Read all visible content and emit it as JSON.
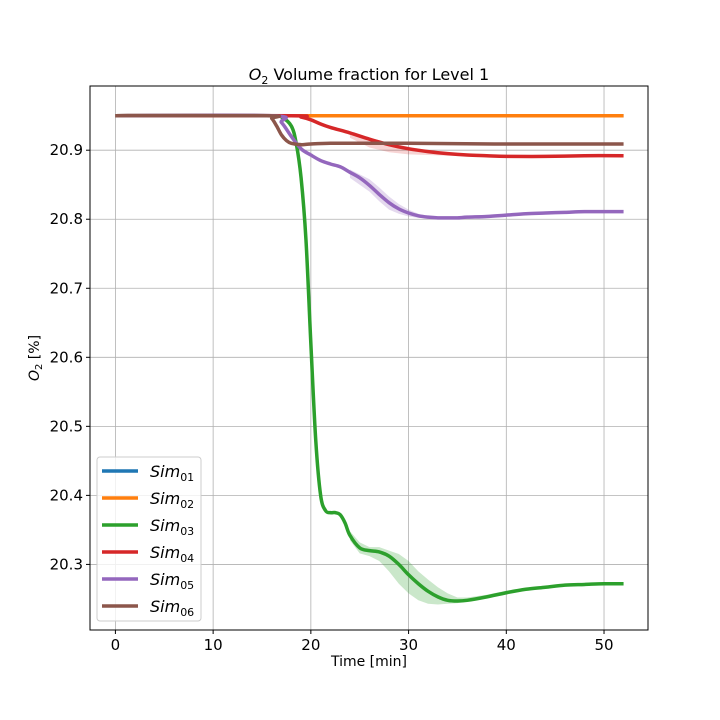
{
  "chart_data": {
    "type": "line",
    "title_main": "O",
    "title_sub": "2",
    "title_rest": " Volume fraction for Level 1",
    "xlabel": "Time [min]",
    "ylabel_main": "O",
    "ylabel_sub": "2",
    "ylabel_rest": " [%]",
    "xlim": [
      -2.6,
      54.5
    ],
    "ylim": [
      20.205,
      20.993
    ],
    "xticks": [
      0,
      10,
      20,
      30,
      40,
      50
    ],
    "yticks": [
      20.3,
      20.4,
      20.5,
      20.6,
      20.7,
      20.8,
      20.9
    ],
    "ytick_labels": [
      "20.3",
      "20.4",
      "20.5",
      "20.6",
      "20.7",
      "20.8",
      "20.9"
    ],
    "grid": true,
    "legend_position": "lower-left",
    "series": [
      {
        "name_main": "Sim",
        "name_sub": "01",
        "color": "#1f77b4",
        "x": [
          0,
          52
        ],
        "y": [
          20.95,
          20.95
        ]
      },
      {
        "name_main": "Sim",
        "name_sub": "02",
        "color": "#ff7f0e",
        "x": [
          0,
          52
        ],
        "y": [
          20.95,
          20.95
        ]
      },
      {
        "name_main": "Sim",
        "name_sub": "03",
        "color": "#2ca02c",
        "x": [
          0,
          16,
          17,
          18,
          18.5,
          19,
          19.5,
          20,
          20.5,
          21,
          21.5,
          22,
          22.5,
          23,
          23.5,
          24,
          25,
          26,
          27,
          28,
          29,
          30,
          31,
          32,
          33,
          34,
          35,
          36,
          38,
          40,
          42,
          44,
          46,
          48,
          50,
          52
        ],
        "y": [
          20.95,
          20.95,
          20.948,
          20.935,
          20.91,
          20.86,
          20.77,
          20.62,
          20.48,
          20.4,
          20.378,
          20.375,
          20.375,
          20.372,
          20.36,
          20.342,
          20.324,
          20.32,
          20.318,
          20.312,
          20.3,
          20.285,
          20.272,
          20.261,
          20.253,
          20.248,
          20.247,
          20.248,
          20.253,
          20.259,
          20.264,
          20.267,
          20.27,
          20.271,
          20.272,
          20.272
        ]
      },
      {
        "name_main": "Sim",
        "name_sub": "04",
        "color": "#d62728",
        "x": [
          0,
          18,
          19,
          20,
          21,
          22,
          24,
          26,
          28,
          30,
          32,
          34,
          36,
          38,
          40,
          44,
          48,
          52
        ],
        "y": [
          20.95,
          20.95,
          20.948,
          20.944,
          20.938,
          20.933,
          20.925,
          20.916,
          20.908,
          20.902,
          20.898,
          20.895,
          20.893,
          20.892,
          20.891,
          20.891,
          20.892,
          20.892
        ]
      },
      {
        "name_main": "Sim",
        "name_sub": "05",
        "color": "#9467bd",
        "x": [
          0,
          16,
          17,
          18,
          19,
          20,
          21,
          22,
          23,
          24,
          25,
          26,
          27,
          28,
          29,
          30,
          31,
          32,
          33,
          34,
          35,
          36,
          38,
          40,
          42,
          44,
          46,
          48,
          50,
          52
        ],
        "y": [
          20.95,
          20.95,
          20.94,
          20.92,
          20.902,
          20.893,
          20.885,
          20.88,
          20.876,
          20.868,
          20.86,
          20.849,
          20.836,
          20.824,
          20.815,
          20.809,
          20.805,
          20.803,
          20.802,
          20.802,
          20.802,
          20.803,
          20.804,
          20.806,
          20.808,
          20.809,
          20.81,
          20.811,
          20.811,
          20.811
        ]
      },
      {
        "name_main": "Sim",
        "name_sub": "06",
        "color": "#8c564b",
        "x": [
          0,
          15.5,
          16,
          16.5,
          17,
          17.5,
          18,
          19,
          20,
          22,
          25,
          30,
          40,
          52
        ],
        "y": [
          20.95,
          20.95,
          20.946,
          20.935,
          20.922,
          20.914,
          20.91,
          20.908,
          20.909,
          20.91,
          20.91,
          20.91,
          20.909,
          20.909
        ]
      }
    ],
    "bands": [
      {
        "series_index": 2,
        "color": "#2ca02c",
        "opacity": 0.25,
        "x": [
          24,
          25,
          26,
          27,
          28,
          29,
          30,
          31,
          32,
          33,
          34,
          35,
          36,
          38,
          40,
          42,
          44
        ],
        "lo": [
          20.335,
          20.316,
          20.312,
          20.305,
          20.29,
          20.272,
          20.258,
          20.248,
          20.243,
          20.242,
          20.243,
          20.244,
          20.246,
          20.252,
          20.258,
          20.262,
          20.265
        ],
        "hi": [
          20.348,
          20.332,
          20.325,
          20.325,
          20.32,
          20.315,
          20.305,
          20.29,
          20.278,
          20.267,
          20.258,
          20.252,
          20.252,
          20.256,
          20.262,
          20.266,
          20.268
        ]
      },
      {
        "series_index": 4,
        "color": "#9467bd",
        "opacity": 0.25,
        "x": [
          24,
          26,
          27,
          28,
          29,
          30,
          31,
          32,
          33,
          34,
          36
        ],
        "lo": [
          20.86,
          20.84,
          20.826,
          20.814,
          20.808,
          20.804,
          20.802,
          20.801,
          20.801,
          20.801,
          20.802
        ],
        "hi": [
          20.872,
          20.858,
          20.846,
          20.833,
          20.822,
          20.814,
          20.808,
          20.805,
          20.803,
          20.803,
          20.804
        ]
      },
      {
        "series_index": 3,
        "color": "#d62728",
        "opacity": 0.2,
        "x": [
          24,
          26,
          28,
          30,
          32,
          34,
          36
        ],
        "lo": [
          20.918,
          20.904,
          20.897,
          20.894,
          20.893,
          20.892,
          20.892
        ],
        "hi": [
          20.927,
          20.918,
          20.911,
          20.905,
          20.9,
          20.897,
          20.894
        ]
      }
    ]
  }
}
